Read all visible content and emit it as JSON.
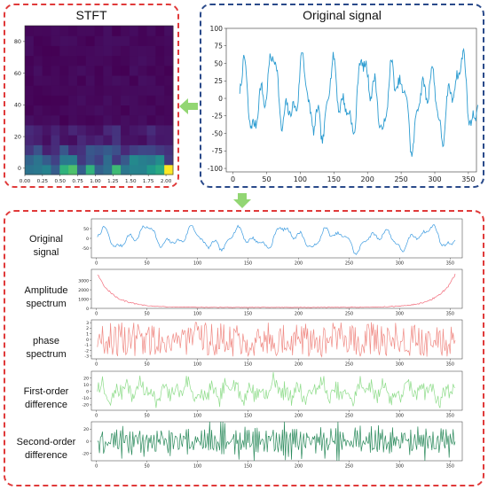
{
  "stft_panel": {
    "title": "STFT",
    "chart_data": {
      "type": "heatmap",
      "title": "STFT",
      "x_ticks": [
        "0.00",
        "0.25",
        "0.50",
        "0.75",
        "1.00",
        "1.25",
        "1.50",
        "1.75",
        "2.00"
      ],
      "y_ticks": [
        "0",
        "20",
        "40",
        "60",
        "80"
      ],
      "xlim": [
        0,
        2.1
      ],
      "ylim": [
        -4,
        90
      ],
      "freq_bins": 15,
      "time_bins": 17,
      "colormap": "viridis"
    }
  },
  "original_panel": {
    "title": "Original signal",
    "chart_data": {
      "type": "line",
      "title": "Original signal",
      "x_ticks": [
        "0",
        "50",
        "100",
        "150",
        "200",
        "250",
        "300",
        "350"
      ],
      "y_ticks": [
        "100",
        "75",
        "50",
        "25",
        "0",
        "-25",
        "-50",
        "-75",
        "-100"
      ],
      "xlim": [
        -10,
        362
      ],
      "ylim": [
        -105,
        100
      ],
      "color": "#2a9bd0"
    }
  },
  "feature_rows": [
    {
      "label": "Original\nsignal",
      "color": "#3c9be0",
      "y_ticks": [
        "50",
        "0",
        "-50"
      ],
      "ylim": [
        -100,
        100
      ]
    },
    {
      "label": "Amplitude\nspectrum",
      "color": "#f26b7a",
      "y_ticks": [
        "3000",
        "2000",
        "1000",
        "0"
      ],
      "ylim": [
        0,
        4200
      ]
    },
    {
      "label": "phase\nspectrum",
      "color": "#f08a84",
      "y_ticks": [
        "3",
        "2",
        "1",
        "0",
        "-1",
        "-2",
        "-3"
      ],
      "ylim": [
        -3.5,
        3.5
      ]
    },
    {
      "label": "First-order\ndifference",
      "color": "#8edc8a",
      "y_ticks": [
        "20",
        "10",
        "0",
        "-10",
        "-20"
      ],
      "ylim": [
        -28,
        30
      ]
    },
    {
      "label": "Second-order\ndifference",
      "color": "#2b8a5c",
      "y_ticks": [
        "20",
        "0",
        "-20"
      ],
      "ylim": [
        -32,
        32
      ]
    }
  ],
  "feature_x_ticks": [
    "0",
    "50",
    "100",
    "150",
    "200",
    "250",
    "300",
    "350"
  ],
  "feature_xlim": [
    -5,
    362
  ],
  "colors": {
    "red_frame": "#e03a3a",
    "blue_frame": "#2a4a8a",
    "arrow": "#7fcf5a"
  }
}
